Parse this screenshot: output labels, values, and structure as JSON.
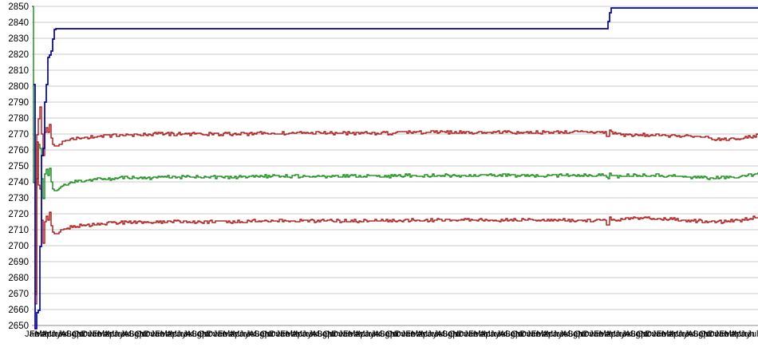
{
  "chart_data": {
    "type": "line",
    "title": "",
    "xlabel": "",
    "ylabel": "",
    "ylim": [
      2650,
      2850
    ],
    "y_tick_step": 10,
    "y_tick_labels": [
      "2850",
      "2840",
      "2830",
      "2820",
      "2810",
      "2800",
      "2790",
      "2780",
      "2770",
      "2760",
      "2750",
      "2740",
      "2730",
      "2720",
      "2710",
      "2700",
      "2690",
      "2680",
      "2670",
      "2660",
      "2650"
    ],
    "x_axis": {
      "style": "overlapping-month-labels",
      "month_cycle": [
        "Jan",
        "Feb",
        "Mar",
        "Apr",
        "May",
        "Jun",
        "Jul",
        "Aug",
        "Sep",
        "Oct",
        "Nov",
        "Dec"
      ],
      "label_count": 139,
      "first_label": "Jan"
    },
    "grid": "horizontal-only",
    "legend": "none",
    "colors": {
      "grid": "#c9c9c9",
      "axis": "#8a8a8a",
      "tick_text": "#000000",
      "background": "#ffffff",
      "blue": "#0000a2",
      "red": "#a80000",
      "green": "#008200"
    },
    "series": [
      {
        "name": "green-mid-line",
        "color": "#008200",
        "width": 1.3,
        "seed": 11,
        "noise": 1,
        "noise_start": 0.035,
        "settled_level": 2743.5,
        "anchors": [
          [
            0,
            2850
          ],
          [
            0.0015,
            2650
          ],
          [
            0.003,
            2842
          ],
          [
            0.0045,
            2658
          ],
          [
            0.006,
            2802
          ],
          [
            0.0075,
            2650
          ],
          [
            0.009,
            2782
          ],
          [
            0.01,
            2690
          ],
          [
            0.011,
            2762
          ],
          [
            0.012,
            2700
          ],
          [
            0.013,
            2746
          ],
          [
            0.0145,
            2712
          ],
          [
            0.016,
            2742
          ],
          [
            0.018,
            2746
          ],
          [
            0.02,
            2748
          ],
          [
            0.022,
            2744
          ],
          [
            0.024,
            2749
          ],
          [
            0.026,
            2741
          ],
          [
            0.028,
            2736
          ],
          [
            0.032,
            2734
          ],
          [
            0.036,
            2735.5
          ],
          [
            0.042,
            2737
          ],
          [
            0.05,
            2739
          ],
          [
            0.065,
            2740.5
          ],
          [
            0.09,
            2741.5
          ],
          [
            0.13,
            2742.5
          ],
          [
            0.2,
            2743
          ],
          [
            0.4,
            2743.5
          ],
          [
            0.6,
            2744
          ],
          [
            0.79,
            2744
          ],
          [
            0.7925,
            2740.5
          ],
          [
            0.795,
            2746
          ],
          [
            0.798,
            2743.5
          ],
          [
            0.82,
            2744
          ],
          [
            0.86,
            2744
          ],
          [
            0.9,
            2743
          ],
          [
            0.95,
            2742.5
          ],
          [
            0.97,
            2743
          ],
          [
            0.99,
            2744.5
          ],
          [
            1,
            2745.5
          ]
        ]
      },
      {
        "name": "upper-red-line",
        "color": "#a80000",
        "width": 1.3,
        "seed": 7,
        "noise": 1,
        "noise_start": 0.035,
        "settled_level": 2770.5,
        "anchors": [
          [
            0.003,
            2850
          ],
          [
            0.0045,
            2656
          ],
          [
            0.006,
            2846
          ],
          [
            0.0075,
            2652
          ],
          [
            0.009,
            2800
          ],
          [
            0.01,
            2716
          ],
          [
            0.011,
            2788
          ],
          [
            0.012,
            2728
          ],
          [
            0.013,
            2774
          ],
          [
            0.0145,
            2740
          ],
          [
            0.016,
            2768
          ],
          [
            0.018,
            2772
          ],
          [
            0.02,
            2774
          ],
          [
            0.022,
            2771
          ],
          [
            0.024,
            2777
          ],
          [
            0.026,
            2768
          ],
          [
            0.028,
            2764
          ],
          [
            0.032,
            2762
          ],
          [
            0.036,
            2763.5
          ],
          [
            0.042,
            2765
          ],
          [
            0.05,
            2766.5
          ],
          [
            0.065,
            2767.5
          ],
          [
            0.09,
            2768.5
          ],
          [
            0.13,
            2769.5
          ],
          [
            0.2,
            2770
          ],
          [
            0.4,
            2770.5
          ],
          [
            0.6,
            2771
          ],
          [
            0.79,
            2771
          ],
          [
            0.7925,
            2766
          ],
          [
            0.795,
            2773
          ],
          [
            0.798,
            2770.5
          ],
          [
            0.82,
            2769.5
          ],
          [
            0.86,
            2769.5
          ],
          [
            0.9,
            2768.5
          ],
          [
            0.95,
            2766.5
          ],
          [
            0.97,
            2767
          ],
          [
            0.99,
            2768.5
          ],
          [
            1,
            2769.5
          ]
        ]
      },
      {
        "name": "lower-red-line",
        "color": "#a80000",
        "width": 1.3,
        "seed": 23,
        "noise": 1,
        "noise_start": 0.035,
        "settled_level": 2715.5,
        "anchors": [
          [
            0.003,
            2846
          ],
          [
            0.0045,
            2650
          ],
          [
            0.006,
            2840
          ],
          [
            0.0075,
            2651
          ],
          [
            0.009,
            2752
          ],
          [
            0.01,
            2680
          ],
          [
            0.011,
            2736
          ],
          [
            0.012,
            2690
          ],
          [
            0.013,
            2720
          ],
          [
            0.0145,
            2686
          ],
          [
            0.016,
            2712
          ],
          [
            0.018,
            2716
          ],
          [
            0.02,
            2719
          ],
          [
            0.022,
            2716
          ],
          [
            0.024,
            2722
          ],
          [
            0.026,
            2713
          ],
          [
            0.028,
            2709
          ],
          [
            0.032,
            2707
          ],
          [
            0.036,
            2708.5
          ],
          [
            0.042,
            2710
          ],
          [
            0.05,
            2711.5
          ],
          [
            0.065,
            2712.5
          ],
          [
            0.09,
            2713.5
          ],
          [
            0.13,
            2714.5
          ],
          [
            0.2,
            2715
          ],
          [
            0.4,
            2715.5
          ],
          [
            0.6,
            2716
          ],
          [
            0.79,
            2716
          ],
          [
            0.7925,
            2711
          ],
          [
            0.795,
            2718
          ],
          [
            0.798,
            2715.5
          ],
          [
            0.82,
            2717
          ],
          [
            0.86,
            2717
          ],
          [
            0.9,
            2716
          ],
          [
            0.95,
            2715
          ],
          [
            0.97,
            2715.5
          ],
          [
            0.99,
            2717
          ],
          [
            1,
            2718.5
          ]
        ]
      },
      {
        "name": "blue-step-line",
        "color": "#0000a2",
        "width": 1.7,
        "seed": 3,
        "noise": 0,
        "noise_start": 1,
        "settled_level": 2836,
        "anchors": [
          [
            0.0015,
            2850
          ],
          [
            0.002,
            2838
          ],
          [
            0.003,
            2650
          ],
          [
            0.0045,
            2648
          ],
          [
            0.006,
            2652
          ],
          [
            0.008,
            2672
          ],
          [
            0.009,
            2656
          ],
          [
            0.0105,
            2700
          ],
          [
            0.012,
            2698
          ],
          [
            0.013,
            2756
          ],
          [
            0.0145,
            2760
          ],
          [
            0.016,
            2762
          ],
          [
            0.0175,
            2790
          ],
          [
            0.019,
            2789
          ],
          [
            0.0205,
            2812
          ],
          [
            0.022,
            2818
          ],
          [
            0.0235,
            2819
          ],
          [
            0.025,
            2820
          ],
          [
            0.0265,
            2822
          ],
          [
            0.028,
            2827
          ],
          [
            0.0295,
            2833
          ],
          [
            0.031,
            2836
          ],
          [
            0.792,
            2836
          ],
          [
            0.7935,
            2841
          ],
          [
            0.795,
            2845
          ],
          [
            0.7965,
            2848
          ],
          [
            0.798,
            2849
          ],
          [
            1,
            2849
          ]
        ]
      }
    ]
  }
}
